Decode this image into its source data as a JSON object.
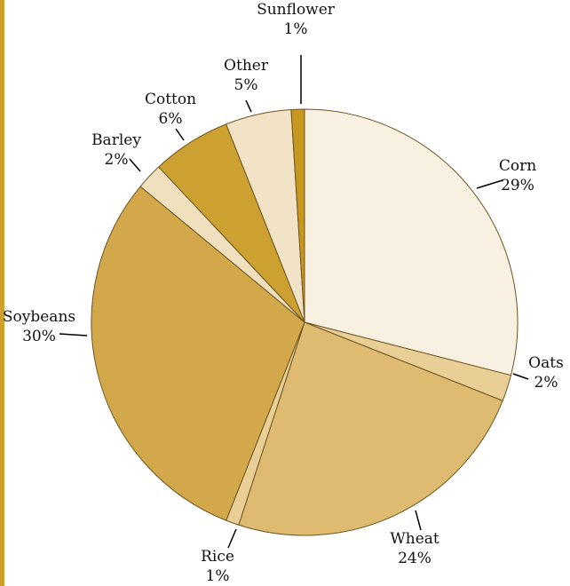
{
  "chart_data": {
    "type": "pie",
    "title": "",
    "slices": [
      {
        "label": "Corn",
        "pct_label": "29%",
        "value": 29,
        "color": "#f8f1e1"
      },
      {
        "label": "Oats",
        "pct_label": "2%",
        "value": 2,
        "color": "#e9cf95"
      },
      {
        "label": "Wheat",
        "pct_label": "24%",
        "value": 24,
        "color": "#dfbb72"
      },
      {
        "label": "Rice",
        "pct_label": "1%",
        "value": 1,
        "color": "#e9cf95"
      },
      {
        "label": "Soybeans",
        "pct_label": "30%",
        "value": 30,
        "color": "#d3a84a"
      },
      {
        "label": "Barley",
        "pct_label": "2%",
        "value": 2,
        "color": "#f0e0bd"
      },
      {
        "label": "Cotton",
        "pct_label": "6%",
        "value": 6,
        "color": "#cda032"
      },
      {
        "label": "Other",
        "pct_label": "5%",
        "value": 5,
        "color": "#f3e3c6"
      },
      {
        "label": "Sunflower",
        "pct_label": "1%",
        "value": 1,
        "color": "#c8971e"
      }
    ],
    "start": "12 o'clock",
    "direction": "clockwise",
    "legend": "none; labels outside slices with leader lines"
  },
  "colors": {
    "left_rule": "#cf9f2a",
    "slice_stroke": "#6b5520",
    "text": "#111111"
  }
}
